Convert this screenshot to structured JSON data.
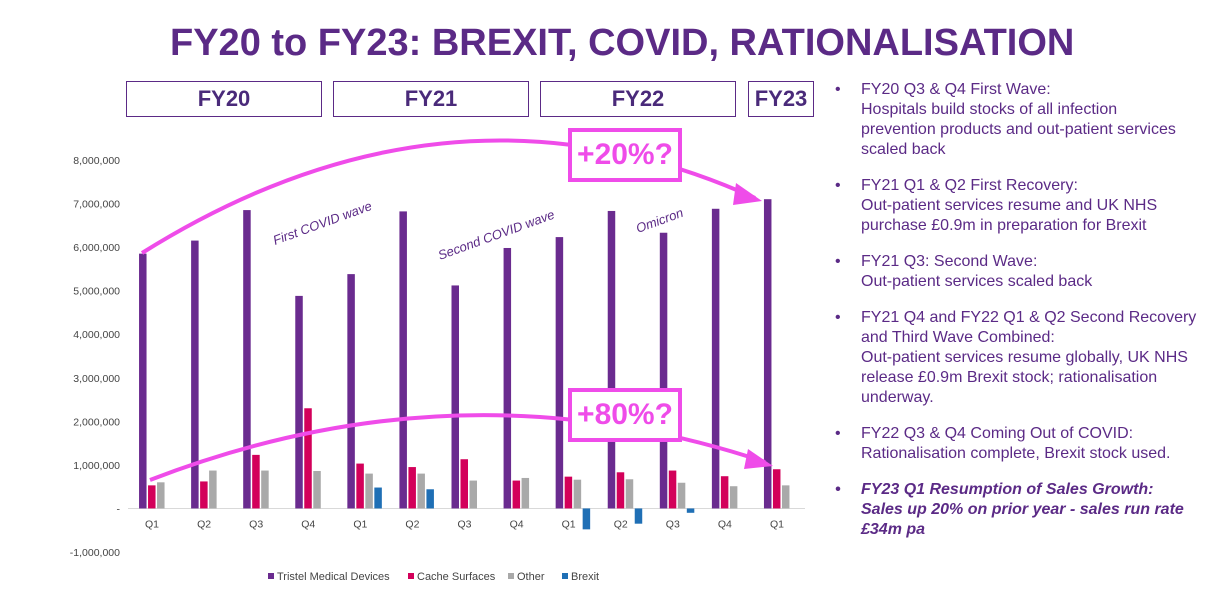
{
  "title": "FY20 to FY23: BREXIT, COVID, RATIONALISATION",
  "fy_headers": [
    "FY20",
    "FY21",
    "FY22",
    "FY23"
  ],
  "callouts": {
    "top": "+20%?",
    "bottom": "+80%?"
  },
  "annotations": [
    "First COVID wave",
    "Second COVID wave",
    "Omicron"
  ],
  "bullets": [
    {
      "lines": [
        "FY20 Q3 & Q4 First Wave:",
        "Hospitals build stocks of all infection",
        "prevention products and out-patient services",
        "scaled back"
      ],
      "emphasis": false
    },
    {
      "lines": [
        "FY21 Q1 & Q2 First Recovery:",
        "Out-patient services resume and UK NHS",
        "purchase £0.9m in preparation for Brexit"
      ],
      "emphasis": false
    },
    {
      "lines": [
        "FY21 Q3: Second Wave:",
        "Out-patient services scaled back"
      ],
      "emphasis": false
    },
    {
      "lines": [
        "FY21 Q4 and FY22 Q1 & Q2 Second Recovery",
        "and Third Wave Combined:",
        "Out-patient services resume globally, UK NHS",
        "release £0.9m Brexit stock; rationalisation",
        "underway."
      ],
      "emphasis": false
    },
    {
      "lines": [
        "FY22 Q3 & Q4 Coming Out of COVID:",
        "Rationalisation complete, Brexit stock used."
      ],
      "emphasis": false
    },
    {
      "lines": [
        "FY23 Q1 Resumption of Sales Growth:",
        "Sales up 20% on prior year - sales run rate",
        "£34m pa"
      ],
      "emphasis": true
    }
  ],
  "chart_data": {
    "type": "bar",
    "categories": [
      "Q1",
      "Q2",
      "Q3",
      "Q4",
      "Q1",
      "Q2",
      "Q3",
      "Q4",
      "Q1",
      "Q2",
      "Q3",
      "Q4",
      "Q1"
    ],
    "series": [
      {
        "name": "Tristel Medical Devices",
        "color": "#6a2b8f",
        "values": [
          5850000,
          6150000,
          6850000,
          4880000,
          5380000,
          6820000,
          5120000,
          5980000,
          6230000,
          6830000,
          6330000,
          6880000,
          7100000
        ]
      },
      {
        "name": "Cache Surfaces",
        "color": "#d3005a",
        "values": [
          530000,
          620000,
          1230000,
          2300000,
          1030000,
          950000,
          1130000,
          640000,
          730000,
          830000,
          870000,
          740000,
          900000
        ]
      },
      {
        "name": "Other",
        "color": "#a9a9a9",
        "values": [
          600000,
          870000,
          870000,
          860000,
          800000,
          800000,
          640000,
          700000,
          660000,
          670000,
          590000,
          510000,
          530000
        ]
      },
      {
        "name": "Brexit",
        "color": "#1f6fb5",
        "values": [
          0,
          0,
          0,
          0,
          480000,
          440000,
          0,
          0,
          -480000,
          -350000,
          -100000,
          0,
          0
        ]
      }
    ],
    "ylim": [
      -1000000,
      8000000
    ],
    "yticks": [
      -1000000,
      0,
      1000000,
      2000000,
      3000000,
      4000000,
      5000000,
      6000000,
      7000000,
      8000000
    ],
    "ytick_labels": [
      "-1,000,000",
      "-",
      "1,000,000",
      "2,000,000",
      "3,000,000",
      "4,000,000",
      "5,000,000",
      "6,000,000",
      "7,000,000",
      "8,000,000"
    ],
    "legend_position": "bottom",
    "grid": false
  }
}
